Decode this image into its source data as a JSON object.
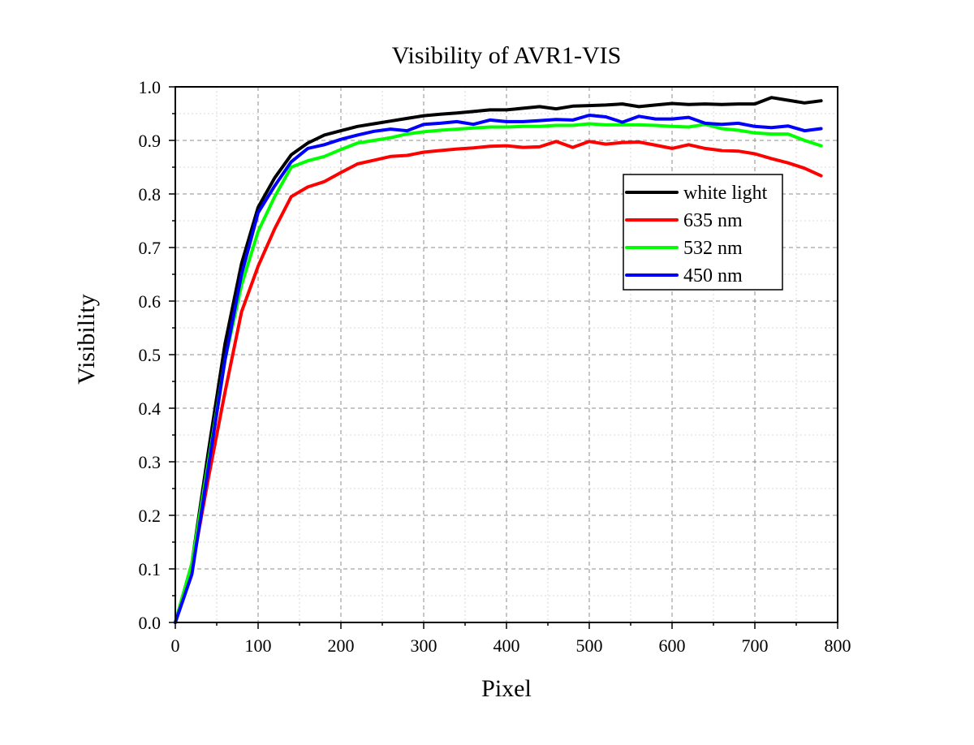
{
  "chart_data": {
    "type": "line",
    "title": "Visibility of AVR1-VIS",
    "xlabel": "Pixel",
    "ylabel": "Visibility",
    "xlim": [
      0,
      800
    ],
    "ylim": [
      0,
      1.0
    ],
    "x_ticks": [
      "0",
      "100",
      "200",
      "300",
      "400",
      "500",
      "600",
      "700",
      "800"
    ],
    "y_ticks": [
      "0.0",
      "0.1",
      "0.2",
      "0.3",
      "0.4",
      "0.5",
      "0.6",
      "0.7",
      "0.8",
      "0.9",
      "1.0"
    ],
    "grid": true,
    "legend_position": "right",
    "x": [
      0,
      20,
      40,
      60,
      80,
      100,
      120,
      140,
      160,
      180,
      200,
      220,
      240,
      260,
      280,
      300,
      320,
      340,
      360,
      380,
      400,
      420,
      440,
      460,
      480,
      500,
      520,
      540,
      560,
      580,
      600,
      620,
      640,
      660,
      680,
      700,
      720,
      740,
      760,
      780
    ],
    "series": [
      {
        "name": "white light",
        "color": "#000000",
        "values": [
          0.0,
          0.11,
          0.32,
          0.52,
          0.67,
          0.775,
          0.83,
          0.873,
          0.895,
          0.91,
          0.918,
          0.926,
          0.931,
          0.936,
          0.941,
          0.946,
          0.949,
          0.951,
          0.954,
          0.957,
          0.957,
          0.96,
          0.963,
          0.959,
          0.964,
          0.965,
          0.966,
          0.968,
          0.963,
          0.966,
          0.969,
          0.967,
          0.968,
          0.967,
          0.968,
          0.968,
          0.98,
          0.975,
          0.97,
          0.974
        ]
      },
      {
        "name": "635 nm",
        "color": "#ff0000",
        "values": [
          0.0,
          0.1,
          0.27,
          0.43,
          0.58,
          0.665,
          0.735,
          0.795,
          0.813,
          0.823,
          0.84,
          0.856,
          0.863,
          0.87,
          0.872,
          0.878,
          0.881,
          0.884,
          0.886,
          0.889,
          0.89,
          0.887,
          0.888,
          0.898,
          0.887,
          0.898,
          0.893,
          0.896,
          0.897,
          0.891,
          0.885,
          0.892,
          0.885,
          0.881,
          0.88,
          0.875,
          0.866,
          0.858,
          0.848,
          0.834
        ]
      },
      {
        "name": "532 nm",
        "color": "#00ff00",
        "values": [
          0.0,
          0.11,
          0.3,
          0.49,
          0.63,
          0.73,
          0.795,
          0.85,
          0.862,
          0.87,
          0.883,
          0.895,
          0.9,
          0.905,
          0.912,
          0.916,
          0.919,
          0.921,
          0.923,
          0.925,
          0.925,
          0.926,
          0.926,
          0.928,
          0.928,
          0.931,
          0.929,
          0.929,
          0.929,
          0.928,
          0.926,
          0.925,
          0.93,
          0.922,
          0.919,
          0.914,
          0.912,
          0.912,
          0.9,
          0.89
        ]
      },
      {
        "name": "450 nm",
        "color": "#0000ff",
        "values": [
          0.0,
          0.09,
          0.29,
          0.49,
          0.65,
          0.765,
          0.815,
          0.86,
          0.885,
          0.892,
          0.902,
          0.91,
          0.917,
          0.921,
          0.918,
          0.93,
          0.932,
          0.935,
          0.93,
          0.938,
          0.935,
          0.935,
          0.937,
          0.939,
          0.938,
          0.947,
          0.944,
          0.934,
          0.945,
          0.94,
          0.94,
          0.943,
          0.932,
          0.93,
          0.932,
          0.926,
          0.924,
          0.927,
          0.918,
          0.922
        ]
      }
    ]
  }
}
